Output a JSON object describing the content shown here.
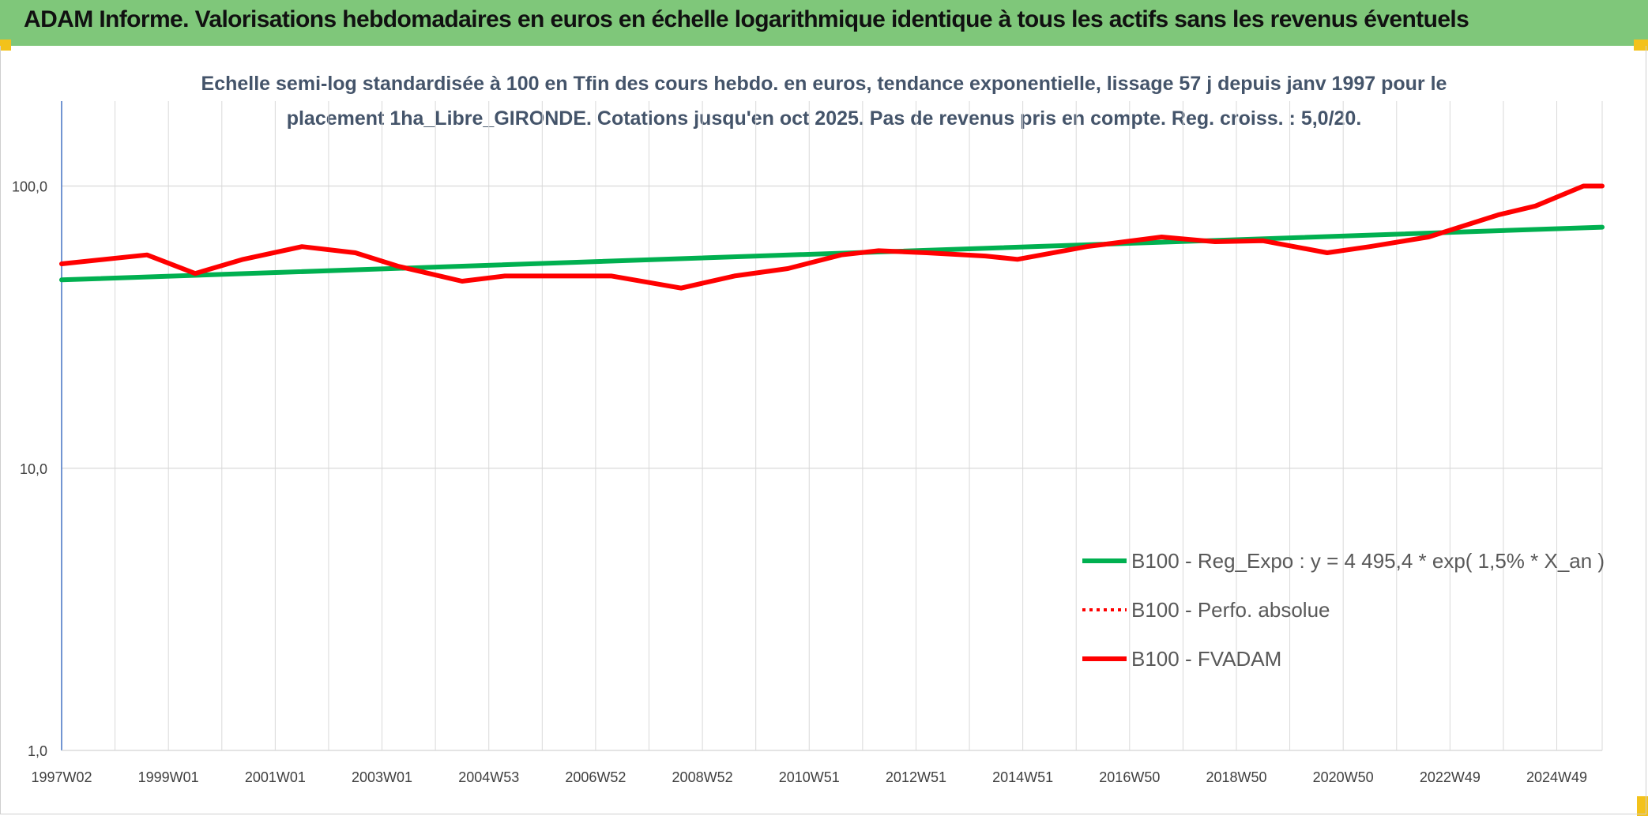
{
  "header": {
    "title": "ADAM Informe. Valorisations hebdomadaires en euros en échelle logarithmique identique à tous les actifs sans les revenus éventuels"
  },
  "colors": {
    "header_bg": "#7fc77a",
    "accent_corner": "#f3c21b",
    "trend": "#00b050",
    "perf": "#ff0000",
    "fvadam": "#ff0000"
  },
  "chart_data": {
    "type": "line",
    "subtitle_lines": [
      "Echelle semi-log standardisée à 100 en Tfin des cours hebdo. en euros, tendance exponentielle, lissage 57 j depuis janv 1997 pour le",
      "placement 1ha_Libre_GIRONDE. Cotations jusqu'en oct 2025. Pas de revenus pris en compte. Reg. croiss. : 5,0/20."
    ],
    "y_scale": "log",
    "ylim": [
      1,
      200
    ],
    "y_ticks": [
      {
        "value": 1,
        "label": "1,0"
      },
      {
        "value": 10,
        "label": "10,0"
      },
      {
        "value": 100,
        "label": "100,0"
      }
    ],
    "xlim": [
      1997.0,
      2025.85
    ],
    "x_ticks": [
      {
        "value": 1997.0,
        "label": "1997W02"
      },
      {
        "value": 1999.0,
        "label": "1999W01"
      },
      {
        "value": 2001.0,
        "label": "2001W01"
      },
      {
        "value": 2003.0,
        "label": "2003W01"
      },
      {
        "value": 2005.0,
        "label": "2004W53"
      },
      {
        "value": 2007.0,
        "label": "2006W52"
      },
      {
        "value": 2009.0,
        "label": "2008W52"
      },
      {
        "value": 2011.0,
        "label": "2010W51"
      },
      {
        "value": 2013.0,
        "label": "2012W51"
      },
      {
        "value": 2015.0,
        "label": "2014W51"
      },
      {
        "value": 2017.0,
        "label": "2016W50"
      },
      {
        "value": 2019.0,
        "label": "2018W50"
      },
      {
        "value": 2021.0,
        "label": "2020W50"
      },
      {
        "value": 2023.0,
        "label": "2022W49"
      },
      {
        "value": 2025.0,
        "label": "2024W49"
      }
    ],
    "grid": true,
    "legend_position": "bottom-right",
    "series": [
      {
        "key": "trend",
        "name": "B100 - Reg_Expo : y = 4 495,4 * exp( 1,5% *  X_an )",
        "style": "solid",
        "x": [
          1997.0,
          2025.85
        ],
        "y": [
          46.5,
          71.5
        ]
      },
      {
        "key": "perf",
        "name": "B100 - Perfo. absolue",
        "style": "dotted",
        "x": [],
        "y": []
      },
      {
        "key": "fvadam",
        "name": "B100 - FVADAM",
        "style": "solid",
        "x": [
          1997.0,
          1998.6,
          1999.5,
          2000.4,
          2001.5,
          2002.5,
          2003.3,
          2004.5,
          2005.3,
          2006.3,
          2007.3,
          2008.6,
          2009.6,
          2010.6,
          2011.6,
          2012.3,
          2013.2,
          2014.3,
          2014.9,
          2016.2,
          2017.6,
          2018.6,
          2019.5,
          2020.7,
          2021.5,
          2022.6,
          2023.9,
          2024.6,
          2025.5,
          2025.85
        ],
        "y": [
          53,
          57,
          49,
          55,
          61,
          58,
          52,
          46,
          48,
          48,
          48,
          43.5,
          48,
          51,
          57,
          59,
          58,
          56.5,
          55,
          61,
          66,
          63.5,
          64,
          58,
          61,
          66,
          79,
          85,
          100,
          100
        ]
      }
    ]
  }
}
